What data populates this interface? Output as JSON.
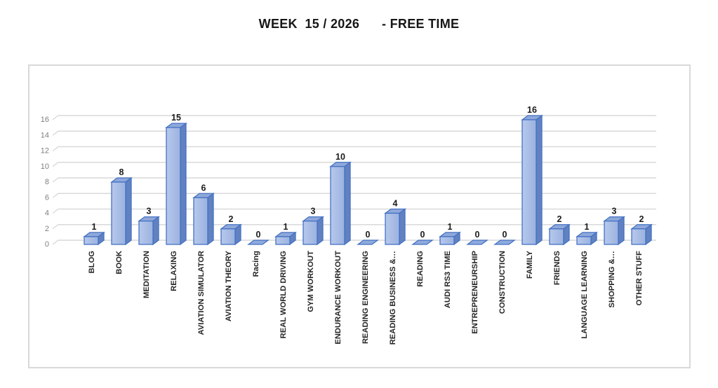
{
  "chart_data": {
    "type": "bar",
    "style": "3d-column",
    "title": "WEEK  15 / 2026      - FREE TIME",
    "categories": [
      "BLOG",
      "BOOK",
      "MEDITATION",
      "RELAXING",
      "AVIATION SIMULATOR",
      "AVIATION THEORY",
      "Racing",
      "REAL WORLD DRIVING",
      "GYM WORKOUT",
      "ENDURANCE WORKOUT",
      "READING ENGINEERING",
      "READING BUSINESS &…",
      "READING",
      "AUDI RS3 TIME",
      "ENTREPRENEURSHIP",
      "CONSTRUCTION",
      "FAMILY",
      "FRIENDS",
      "LANGUAGE LEARNING",
      "SHOPPING &…",
      "OTHER STUFF"
    ],
    "values": [
      1,
      8,
      3,
      15,
      6,
      2,
      0,
      1,
      3,
      10,
      0,
      4,
      0,
      1,
      0,
      0,
      16,
      2,
      1,
      3,
      2
    ],
    "xlabel": "",
    "ylabel": "",
    "ylim": [
      0,
      16
    ],
    "tick_step": 2,
    "tick_labels": [
      "0",
      "2",
      "4",
      "6",
      "8",
      "10",
      "12",
      "14",
      "16"
    ],
    "grid": true,
    "legend_position": "none",
    "data_labels": true,
    "colors": {
      "bar_front_light": "#B7C8EC",
      "bar_front_dark": "#9BB2DF",
      "bar_top": "#8FA8DA",
      "bar_side": "#6181C1",
      "bar_stroke": "#4472C4",
      "flat_zero_fill": "#8FAADC",
      "gridline": "#D9D9D9",
      "tick_text": "#7F7F7F",
      "value_text": "#1A1A1A",
      "category_text": "#262626",
      "frame_border": "#D9D9D9",
      "title_text": "#161616"
    }
  }
}
